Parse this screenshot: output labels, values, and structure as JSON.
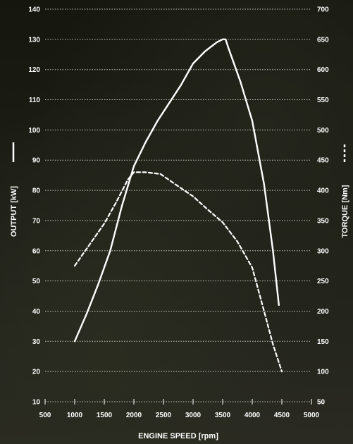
{
  "chart_data": {
    "type": "line",
    "xlabel": "ENGINE SPEED",
    "xlabel_unit": "rpm",
    "ylabel_left": "OUTPUT",
    "ylabel_left_unit": "kW",
    "ylabel_right": "TORQUE",
    "ylabel_right_unit": "Nm",
    "xlim": [
      500,
      5000
    ],
    "ylim_left": [
      10,
      140
    ],
    "ylim_right": [
      50,
      700
    ],
    "x_ticks": [
      "500",
      "1000",
      "1500",
      "2000",
      "2500",
      "3000",
      "3500",
      "4000",
      "4500",
      "5000"
    ],
    "y_left_ticks": [
      "10",
      "20",
      "30",
      "40",
      "50",
      "60",
      "70",
      "80",
      "90",
      "100",
      "110",
      "120",
      "130",
      "140"
    ],
    "y_right_ticks": [
      "50",
      "100",
      "150",
      "200",
      "250",
      "300",
      "350",
      "400",
      "450",
      "500",
      "550",
      "600",
      "650",
      "700"
    ],
    "grid": "horizontal-dotted",
    "series": [
      {
        "axis": "left",
        "style": "solid",
        "color": "#ffffff",
        "x": [
          1000,
          1200,
          1400,
          1600,
          1800,
          2000,
          2200,
          2400,
          2600,
          2800,
          3000,
          3200,
          3400,
          3500,
          3550,
          3600,
          3800,
          4000,
          4200,
          4350,
          4450
        ],
        "y": [
          30,
          39,
          49,
          60,
          75,
          88,
          96,
          103,
          109,
          115,
          122,
          126,
          129,
          130,
          130,
          127,
          116,
          103,
          82,
          60,
          42
        ]
      },
      {
        "axis": "right",
        "style": "dashed",
        "color": "#ffffff",
        "x": [
          1000,
          1250,
          1500,
          1700,
          1900,
          2000,
          2200,
          2450,
          2700,
          3000,
          3250,
          3500,
          3750,
          4000,
          4200,
          4350,
          4500
        ],
        "y": [
          275,
          310,
          345,
          380,
          418,
          430,
          430,
          427,
          410,
          390,
          368,
          347,
          315,
          272,
          200,
          145,
          100
        ]
      }
    ]
  }
}
